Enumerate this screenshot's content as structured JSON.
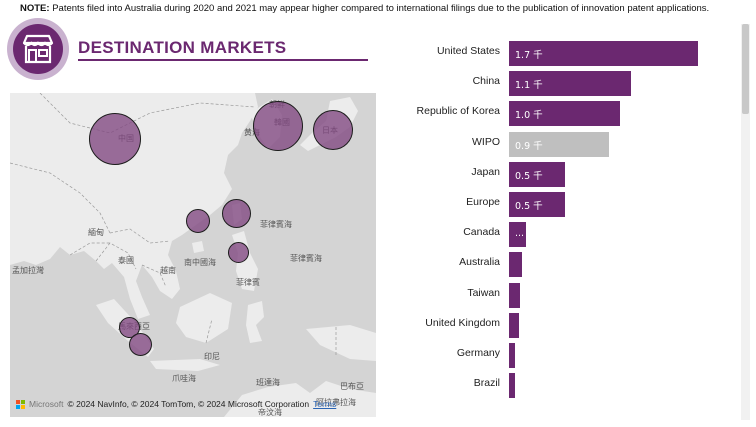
{
  "note": {
    "prefix": "NOTE:",
    "text": " Patents filed into Australia during 2020 and 2021 may appear higher compared to international filings due to the publication of innovation patent applications."
  },
  "header": {
    "title": "DESTINATION MARKETS",
    "icon": "storefront-icon",
    "accent": "#6b2870"
  },
  "map": {
    "labels": {
      "china": "中国",
      "korea_south": "韓國",
      "korea_north": "朝鲜",
      "yellow_sea": "黄海",
      "japan": "日本",
      "myanmar": "緬甸",
      "thailand": "泰國",
      "south_china_sea": "南中國海",
      "philippine_sea": "菲律賓海",
      "philippine_sea2": "菲律賓海",
      "philippines": "菲律賓",
      "bay_of_bengal": "孟加拉灣",
      "vietnam": "越南",
      "malaysia": "馬來西亞",
      "java_sea": "爪哇海",
      "banda_sea": "班達海",
      "timor_sea": "帝汶海",
      "indonesia": "印尼",
      "papua": "巴布亞",
      "arafura": "阿拉弗拉海"
    },
    "attribution": {
      "brand": "Microsoft",
      "text": "© 2024 NavInfo, © 2024 TomTom, © 2024 Microsoft Corporation",
      "terms": "Terms"
    }
  },
  "chart_data": {
    "type": "bar",
    "orientation": "horizontal",
    "categories": [
      "United States",
      "China",
      "Republic of Korea",
      "WIPO",
      "Japan",
      "Europe",
      "Canada",
      "Australia",
      "Taiwan",
      "United Kingdom",
      "Germany",
      "Brazil"
    ],
    "values": [
      1.7,
      1.1,
      1.0,
      0.9,
      0.5,
      0.5,
      0.15,
      0.12,
      0.1,
      0.09,
      0.05,
      0.03
    ],
    "labels": [
      "1.7 千",
      "1.1 千",
      "1.0 千",
      "0.9 千",
      "0.5 千",
      "0.5 千",
      "...",
      "",
      "",
      "",
      "",
      ""
    ],
    "highlight_color": "#6b2870",
    "grey_categories": [
      "WIPO"
    ],
    "grey_color": "#bfbfbf",
    "max": 1.8
  }
}
